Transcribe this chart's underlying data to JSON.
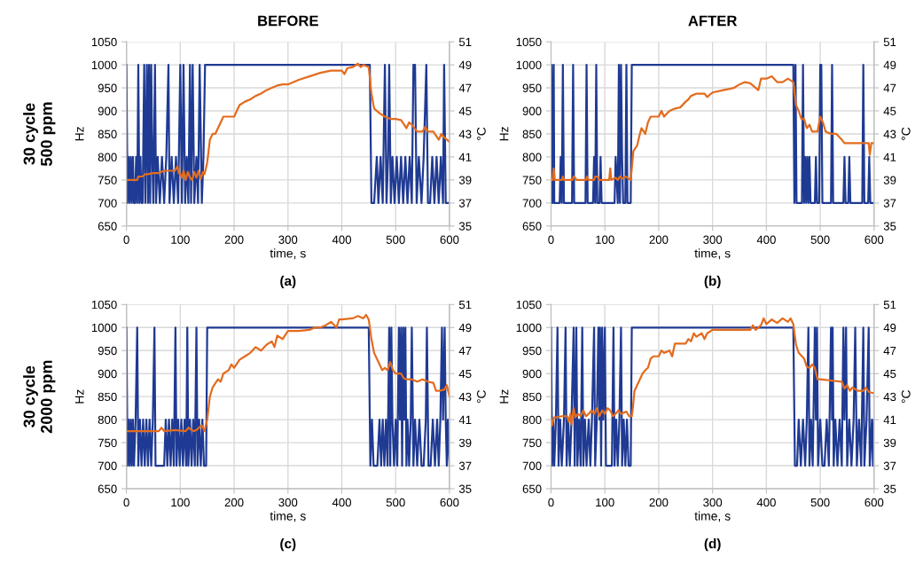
{
  "chart_data": [
    {
      "type": "line",
      "title": "(a)",
      "subtitle": "BEFORE",
      "annotations": [
        "30 cycle\n500 ppm"
      ],
      "xlabel": "time, s",
      "ylabel": "Hz",
      "y2label": "°C",
      "xlim": [
        0,
        600
      ],
      "xticks": [
        0,
        100,
        200,
        300,
        400,
        500,
        600
      ],
      "ylim": [
        650,
        1050
      ],
      "yticks": [
        650,
        700,
        750,
        800,
        850,
        900,
        950,
        1000,
        1050
      ],
      "y2lim": [
        35,
        51
      ],
      "y2ticks": [
        35,
        37,
        39,
        41,
        43,
        45,
        47,
        49,
        51
      ],
      "grid": true,
      "series": [
        {
          "color": "#1f3a93",
          "x": [
            0,
            2,
            4,
            6,
            8,
            10,
            12,
            14,
            16,
            18,
            20,
            22,
            24,
            26,
            28,
            30,
            33,
            35,
            38,
            40,
            42,
            44,
            46,
            48,
            50,
            53,
            55,
            58,
            62,
            66,
            70,
            74,
            78,
            80,
            84,
            88,
            92,
            96,
            100,
            103,
            106,
            109,
            112,
            115,
            118,
            120,
            123,
            126,
            130,
            133,
            136,
            140,
            143,
            146,
            452,
            455,
            460,
            465,
            468,
            472,
            476,
            480,
            483,
            486,
            488,
            491,
            494,
            498,
            502,
            506,
            510,
            514,
            518,
            522,
            526,
            530,
            533,
            536,
            539,
            543,
            548,
            552,
            557,
            560,
            564,
            568,
            572,
            576,
            580,
            584,
            588,
            590,
            593,
            600
          ],
          "values": [
            1000,
            700,
            800,
            700,
            800,
            700,
            800,
            700,
            700,
            800,
            700,
            1000,
            700,
            800,
            700,
            700,
            1000,
            700,
            1000,
            700,
            1000,
            700,
            1000,
            800,
            700,
            1000,
            700,
            800,
            700,
            800,
            700,
            800,
            1000,
            700,
            800,
            700,
            800,
            700,
            1000,
            700,
            1000,
            700,
            800,
            700,
            1000,
            700,
            1000,
            700,
            800,
            700,
            1000,
            700,
            800,
            1000,
            1000,
            700,
            700,
            800,
            700,
            800,
            700,
            1000,
            700,
            800,
            1000,
            700,
            800,
            700,
            800,
            700,
            800,
            700,
            800,
            700,
            800,
            700,
            1000,
            1000,
            700,
            800,
            700,
            800,
            1000,
            700,
            700,
            800,
            700,
            800,
            700,
            800,
            700,
            1000,
            700,
            700
          ]
        },
        {
          "color": "#e36c1e",
          "axis": "y2",
          "x": [
            0,
            20,
            22,
            30,
            35,
            40,
            50,
            60,
            70,
            80,
            90,
            95,
            97,
            100,
            103,
            106,
            110,
            114,
            118,
            122,
            126,
            130,
            134,
            138,
            142,
            145,
            150,
            155,
            160,
            165,
            170,
            175,
            180,
            200,
            205,
            210,
            220,
            230,
            240,
            250,
            260,
            270,
            280,
            290,
            300,
            320,
            340,
            360,
            380,
            400,
            405,
            410,
            420,
            430,
            435,
            440,
            450,
            455,
            460,
            470,
            480,
            490,
            500,
            510,
            520,
            525,
            530,
            540,
            550,
            555,
            560,
            570,
            580,
            585,
            590,
            595,
            600
          ],
          "values": [
            39,
            39,
            39.3,
            39.3,
            39.5,
            39.5,
            39.6,
            39.6,
            39.8,
            39.8,
            39.8,
            40.2,
            39.6,
            39.5,
            39.2,
            39.8,
            39,
            39.7,
            39.2,
            39,
            39.7,
            39.2,
            39.8,
            39.1,
            39.7,
            39.5,
            40.5,
            42.5,
            43,
            43,
            43.5,
            44,
            44.5,
            44.5,
            45,
            45.5,
            45.8,
            46,
            46.3,
            46.5,
            46.8,
            47,
            47.2,
            47.3,
            47.3,
            47.7,
            48,
            48.3,
            48.5,
            48.5,
            48.2,
            48.7,
            48.8,
            49.1,
            48.8,
            49,
            48.8,
            46.5,
            45.2,
            44.8,
            44.5,
            44.3,
            44.3,
            44.2,
            43.5,
            44,
            43.8,
            43.2,
            43.2,
            43.6,
            43.2,
            43.2,
            42.5,
            43,
            42.7,
            42.5,
            42.3
          ]
        }
      ]
    },
    {
      "type": "line",
      "title": "(b)",
      "subtitle": "AFTER",
      "xlabel": "time, s",
      "ylabel": "Hz",
      "y2label": "°C",
      "xlim": [
        0,
        600
      ],
      "xticks": [
        0,
        100,
        200,
        300,
        400,
        500,
        600
      ],
      "ylim": [
        650,
        1050
      ],
      "yticks": [
        650,
        700,
        750,
        800,
        850,
        900,
        950,
        1000,
        1050
      ],
      "y2lim": [
        35,
        51
      ],
      "y2ticks": [
        35,
        37,
        39,
        41,
        43,
        45,
        47,
        49,
        51
      ],
      "grid": true,
      "series": [
        {
          "color": "#1f3a93",
          "x": [
            0,
            1,
            3,
            5,
            6,
            8,
            16,
            18,
            20,
            22,
            24,
            39,
            41,
            43,
            64,
            66,
            68,
            78,
            80,
            82,
            84,
            86,
            90,
            92,
            94,
            118,
            120,
            124,
            126,
            128,
            130,
            132,
            134,
            138,
            140,
            142,
            148,
            150,
            450,
            452,
            454,
            456,
            466,
            468,
            470,
            472,
            474,
            476,
            478,
            480,
            482,
            490,
            492,
            494,
            498,
            500,
            502,
            504,
            520,
            522,
            524,
            543,
            545,
            547,
            552,
            554,
            556,
            578,
            580,
            582,
            589,
            591,
            593,
            600
          ],
          "values": [
            700,
            1000,
            700,
            1000,
            700,
            700,
            700,
            800,
            700,
            1000,
            700,
            700,
            1000,
            700,
            700,
            1000,
            700,
            700,
            800,
            700,
            1000,
            700,
            700,
            800,
            700,
            700,
            800,
            700,
            1000,
            700,
            1000,
            800,
            700,
            700,
            1000,
            700,
            700,
            1000,
            1000,
            700,
            1000,
            700,
            700,
            1000,
            700,
            800,
            700,
            800,
            700,
            800,
            700,
            700,
            800,
            700,
            700,
            1000,
            1000,
            700,
            700,
            1000,
            700,
            700,
            800,
            700,
            700,
            800,
            700,
            700,
            1000,
            700,
            700,
            800,
            700,
            700
          ]
        },
        {
          "color": "#e36c1e",
          "axis": "y2",
          "x": [
            0,
            3,
            5,
            7,
            20,
            22,
            24,
            40,
            42,
            45,
            47,
            65,
            67,
            70,
            80,
            82,
            86,
            90,
            108,
            110,
            112,
            120,
            124,
            128,
            132,
            138,
            142,
            148,
            150,
            153,
            160,
            165,
            168,
            175,
            180,
            185,
            200,
            205,
            210,
            220,
            230,
            240,
            250,
            255,
            260,
            270,
            285,
            290,
            300,
            320,
            340,
            350,
            360,
            370,
            385,
            390,
            400,
            410,
            420,
            430,
            440,
            450,
            455,
            460,
            465,
            470,
            475,
            480,
            485,
            495,
            500,
            505,
            510,
            520,
            530,
            540,
            545,
            560,
            580,
            590,
            592,
            595,
            600
          ],
          "values": [
            39,
            39,
            40,
            39,
            39,
            39.3,
            39,
            39,
            39.3,
            39.2,
            39,
            39,
            39.3,
            39,
            39,
            39.3,
            39.3,
            39,
            39,
            40,
            39,
            39.2,
            39,
            39.3,
            39.1,
            39.3,
            39.2,
            39,
            40,
            41.5,
            42,
            43,
            43.5,
            43,
            44,
            44.5,
            44.5,
            45,
            44.5,
            45,
            45.2,
            45.3,
            45.8,
            46,
            46.3,
            46.5,
            46.5,
            46.2,
            46.6,
            46.8,
            47,
            47.3,
            47.5,
            47.4,
            46.8,
            47.8,
            47.8,
            48,
            47.5,
            47.5,
            47.8,
            47.5,
            45.5,
            45,
            44.3,
            44.3,
            43.5,
            43.8,
            43.2,
            43.2,
            44.5,
            44,
            43.2,
            43,
            43,
            42.5,
            42.2,
            42.2,
            42.2,
            42.2,
            41.2,
            42.2,
            42.2
          ]
        }
      ]
    },
    {
      "type": "line",
      "title": "(c)",
      "annotations": [
        "30 cycle\n2000 ppm"
      ],
      "xlabel": "time, s",
      "ylabel": "Hz",
      "y2label": "°C",
      "xlim": [
        0,
        600
      ],
      "xticks": [
        0,
        100,
        200,
        300,
        400,
        500,
        600
      ],
      "ylim": [
        650,
        1050
      ],
      "yticks": [
        650,
        700,
        750,
        800,
        850,
        900,
        950,
        1000,
        1050
      ],
      "y2lim": [
        35,
        51
      ],
      "y2ticks": [
        35,
        37,
        39,
        41,
        43,
        45,
        47,
        49,
        51
      ],
      "grid": true,
      "series": [
        {
          "color": "#1f3a93",
          "x": [
            0,
            2,
            4,
            6,
            8,
            10,
            12,
            14,
            17,
            20,
            22,
            25,
            28,
            31,
            34,
            37,
            40,
            43,
            46,
            49,
            52,
            54,
            70,
            73,
            76,
            79,
            82,
            85,
            88,
            91,
            93,
            96,
            99,
            102,
            105,
            108,
            111,
            113,
            115,
            118,
            121,
            124,
            127,
            130,
            132,
            135,
            138,
            141,
            144,
            148,
            150,
            450,
            453,
            456,
            459,
            462,
            466,
            470,
            473,
            476,
            479,
            482,
            485,
            488,
            490,
            492,
            494,
            497,
            500,
            503,
            506,
            508,
            510,
            512,
            514,
            516,
            518,
            520,
            522,
            525,
            528,
            530,
            533,
            536,
            540,
            544,
            548,
            552,
            556,
            558,
            561,
            565,
            569,
            573,
            577,
            580,
            583,
            586,
            588,
            591,
            593,
            595,
            597,
            600
          ],
          "values": [
            1000,
            700,
            800,
            700,
            800,
            700,
            800,
            700,
            800,
            1000,
            700,
            800,
            700,
            800,
            700,
            800,
            700,
            800,
            700,
            800,
            1000,
            700,
            700,
            800,
            700,
            800,
            700,
            800,
            700,
            1000,
            700,
            800,
            700,
            800,
            700,
            800,
            700,
            1000,
            700,
            800,
            700,
            800,
            700,
            1000,
            700,
            800,
            700,
            800,
            700,
            700,
            1000,
            1000,
            700,
            800,
            700,
            700,
            700,
            800,
            700,
            800,
            700,
            800,
            700,
            1000,
            700,
            1000,
            800,
            700,
            800,
            700,
            1000,
            800,
            1000,
            700,
            1000,
            800,
            1000,
            700,
            800,
            700,
            800,
            1000,
            700,
            800,
            700,
            800,
            700,
            700,
            800,
            1000,
            700,
            700,
            800,
            700,
            800,
            700,
            800,
            1000,
            800,
            1000,
            800,
            700,
            800,
            700
          ]
        },
        {
          "color": "#e36c1e",
          "axis": "y2",
          "x": [
            0,
            60,
            65,
            70,
            90,
            110,
            115,
            125,
            130,
            135,
            140,
            145,
            150,
            155,
            160,
            170,
            175,
            180,
            190,
            195,
            200,
            210,
            220,
            230,
            240,
            250,
            260,
            270,
            275,
            280,
            290,
            300,
            320,
            340,
            350,
            360,
            370,
            380,
            390,
            395,
            400,
            420,
            430,
            440,
            445,
            450,
            455,
            460,
            465,
            470,
            475,
            480,
            485,
            490,
            495,
            500,
            510,
            515,
            520,
            530,
            540,
            550,
            560,
            570,
            575,
            580,
            590,
            595,
            600
          ],
          "values": [
            40,
            40,
            40.3,
            40,
            40.1,
            40,
            40.3,
            40,
            40.1,
            40.3,
            40.5,
            40,
            41,
            43,
            43.8,
            44.5,
            44.3,
            45,
            45.3,
            45.8,
            45.5,
            46.2,
            46.5,
            46.8,
            47.3,
            47,
            47.5,
            47.8,
            47.3,
            48.3,
            48,
            48.7,
            48.7,
            48.8,
            49,
            49,
            49.2,
            49.5,
            49,
            49.7,
            49.7,
            49.8,
            50,
            49.8,
            50.1,
            49.7,
            48,
            46.8,
            46.3,
            45.8,
            45.3,
            45.5,
            45.3,
            46,
            45.3,
            45,
            45,
            44.6,
            44.5,
            44.5,
            44.3,
            44.5,
            44.3,
            44.2,
            43.5,
            43.5,
            43.6,
            44,
            43
          ]
        }
      ]
    },
    {
      "type": "line",
      "title": "(d)",
      "xlabel": "time, s",
      "ylabel": "Hz",
      "y2label": "°C",
      "xlim": [
        0,
        600
      ],
      "xticks": [
        0,
        100,
        200,
        300,
        400,
        500,
        600
      ],
      "ylim": [
        650,
        1050
      ],
      "yticks": [
        650,
        700,
        750,
        800,
        850,
        900,
        950,
        1000,
        1050
      ],
      "y2lim": [
        35,
        51
      ],
      "y2ticks": [
        35,
        37,
        39,
        41,
        43,
        45,
        47,
        49,
        51
      ],
      "grid": true,
      "series": [
        {
          "color": "#1f3a93",
          "x": [
            0,
            2,
            4,
            6,
            9,
            12,
            14,
            17,
            20,
            24,
            27,
            29,
            32,
            35,
            38,
            42,
            44,
            47,
            49,
            52,
            55,
            58,
            60,
            63,
            66,
            70,
            73,
            76,
            80,
            82,
            85,
            88,
            90,
            91,
            93,
            95,
            97,
            100,
            102,
            105,
            113,
            116,
            118,
            121,
            124,
            127,
            130,
            132,
            135,
            138,
            141,
            144,
            148,
            150,
            450,
            453,
            457,
            460,
            464,
            468,
            472,
            475,
            478,
            480,
            483,
            486,
            490,
            492,
            494,
            496,
            500,
            504,
            508,
            512,
            516,
            520,
            522,
            523,
            525,
            528,
            532,
            536,
            540,
            543,
            545,
            548,
            550,
            554,
            558,
            562,
            565,
            568,
            572,
            576,
            580,
            582,
            586,
            590,
            592,
            596,
            598,
            600
          ],
          "values": [
            1000,
            700,
            800,
            700,
            800,
            1000,
            700,
            800,
            700,
            800,
            1000,
            700,
            800,
            700,
            800,
            1000,
            700,
            1000,
            700,
            800,
            700,
            1000,
            700,
            800,
            700,
            800,
            700,
            800,
            1000,
            700,
            800,
            1000,
            800,
            1000,
            700,
            1000,
            800,
            1000,
            700,
            700,
            700,
            1000,
            700,
            800,
            700,
            800,
            1000,
            700,
            800,
            700,
            800,
            700,
            700,
            1000,
            1000,
            700,
            700,
            800,
            700,
            800,
            700,
            800,
            1000,
            700,
            800,
            700,
            1000,
            800,
            1000,
            700,
            800,
            700,
            700,
            800,
            700,
            1000,
            800,
            1000,
            700,
            800,
            700,
            800,
            700,
            1000,
            800,
            1000,
            700,
            800,
            700,
            800,
            1000,
            700,
            800,
            700,
            1000,
            700,
            800,
            1000,
            700,
            800,
            700,
            800
          ]
        },
        {
          "color": "#e36c1e",
          "axis": "y2",
          "x": [
            0,
            2,
            5,
            10,
            20,
            30,
            33,
            36,
            38,
            42,
            45,
            50,
            55,
            60,
            65,
            70,
            75,
            80,
            85,
            90,
            95,
            100,
            105,
            110,
            115,
            120,
            125,
            130,
            140,
            145,
            150,
            152,
            155,
            160,
            165,
            170,
            175,
            180,
            185,
            190,
            200,
            205,
            210,
            220,
            225,
            230,
            240,
            250,
            255,
            260,
            265,
            270,
            280,
            285,
            290,
            300,
            320,
            340,
            370,
            375,
            380,
            390,
            395,
            400,
            410,
            420,
            430,
            440,
            445,
            450,
            455,
            460,
            470,
            475,
            480,
            485,
            490,
            495,
            500,
            520,
            540,
            545,
            550,
            555,
            560,
            570,
            580,
            585,
            590,
            600
          ],
          "values": [
            41,
            40.5,
            41.2,
            41.2,
            41.3,
            41.3,
            40.8,
            41.5,
            40.6,
            42,
            41.2,
            41.5,
            41.3,
            41.8,
            41.3,
            41.5,
            41.8,
            41.5,
            42,
            41.3,
            41.8,
            41.5,
            42,
            41.8,
            41.3,
            41.5,
            41.8,
            41.5,
            41.7,
            41.3,
            41.3,
            42,
            43.5,
            44,
            44.5,
            45,
            45.3,
            45.5,
            46.3,
            46.5,
            46.5,
            47,
            46.8,
            47,
            46.5,
            47.6,
            47.6,
            47.6,
            48,
            47.8,
            48.5,
            48.2,
            48.5,
            48,
            48.5,
            48.8,
            48.8,
            48.8,
            48.8,
            49.2,
            48.8,
            49.2,
            49.8,
            49.3,
            49.7,
            49.4,
            49.8,
            49.5,
            49.8,
            49.3,
            47.5,
            46.8,
            46.3,
            45.6,
            45.5,
            45.8,
            45.5,
            44.5,
            44.5,
            44.4,
            44.3,
            43.7,
            44,
            43.5,
            43.8,
            43.5,
            43.5,
            43.8,
            43.4,
            43.3
          ]
        }
      ]
    }
  ]
}
